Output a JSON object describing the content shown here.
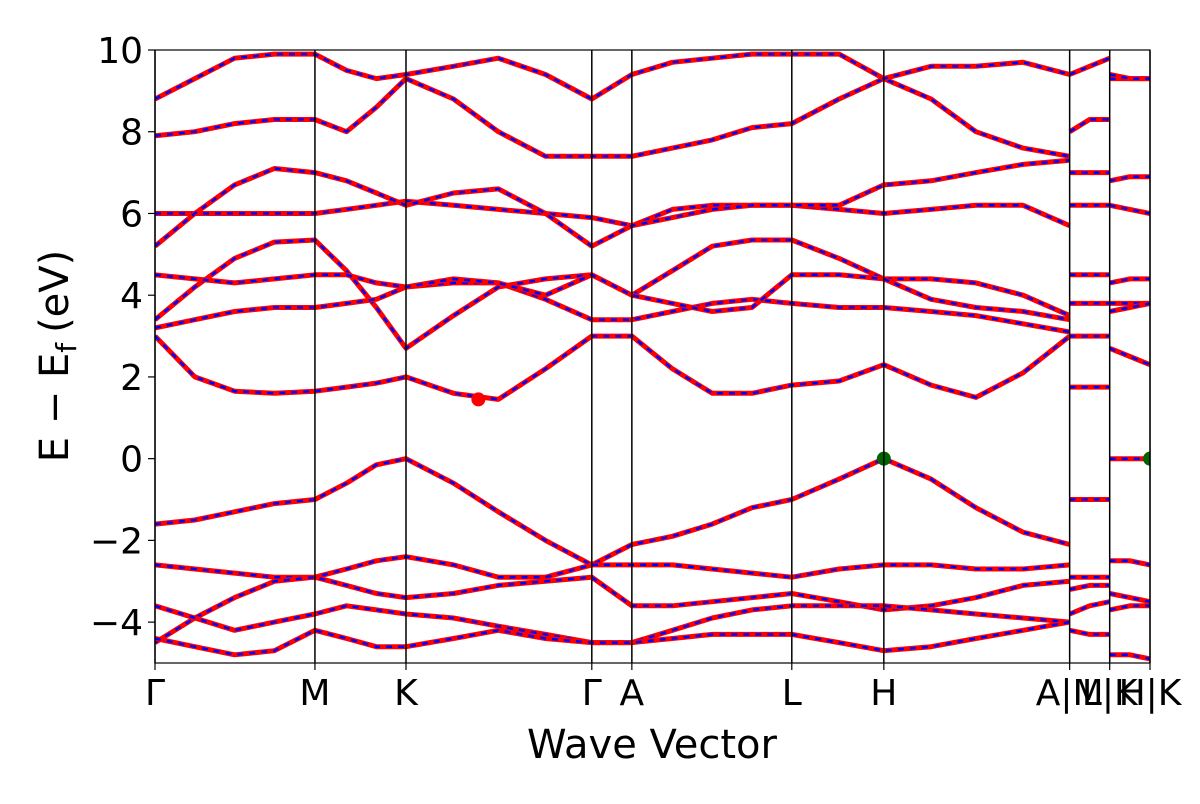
{
  "chart_data": {
    "type": "line",
    "xlabel": "Wave Vector",
    "ylabel": {
      "main": "E − E",
      "sub": "f",
      "unit": "(eV)"
    },
    "xlim": [
      0,
      4.0
    ],
    "ylim": [
      -5,
      10
    ],
    "yticks": [
      {
        "value": -4,
        "label": "−4"
      },
      {
        "value": -2,
        "label": "−2"
      },
      0,
      2,
      4,
      6,
      8,
      10
    ],
    "xticks": [
      {
        "value": 0,
        "label": "Γ"
      },
      {
        "value": 0.643,
        "label": "M"
      },
      {
        "value": 1.009,
        "label": "K"
      },
      {
        "value": 1.756,
        "label": "Γ"
      },
      {
        "value": 1.917,
        "label": "A"
      },
      {
        "value": 2.56,
        "label": "L"
      },
      {
        "value": 2.93,
        "label": "H"
      },
      {
        "value": 3.677,
        "label": "A|M"
      },
      {
        "value": 3.838,
        "label": "L|K"
      },
      {
        "value": 4.0,
        "label": "H|K"
      }
    ],
    "line_color": "#ff0000",
    "overlay_color": "#0000ff",
    "x": [
      0,
      0.16,
      0.32,
      0.48,
      0.643,
      0.77,
      0.89,
      1.009,
      1.2,
      1.38,
      1.57,
      1.756,
      1.917,
      2.08,
      2.24,
      2.4,
      2.56,
      2.75,
      2.93,
      3.12,
      3.3,
      3.49,
      3.677,
      3.677,
      3.677,
      3.757,
      3.838,
      3.838,
      3.838,
      3.919,
      4.0
    ],
    "series": [
      {
        "values": [
          -1.6,
          -1.5,
          -1.3,
          -1.1,
          -1.0,
          -0.6,
          -0.15,
          0,
          -0.6,
          -1.3,
          -2.0,
          -2.6,
          -2.1,
          -1.9,
          -1.6,
          -1.2,
          -1.0,
          -0.5,
          0,
          -0.5,
          -1.2,
          -1.8,
          -2.1,
          null,
          -1.0,
          -1.0,
          -1.0,
          null,
          0,
          0,
          0
        ]
      },
      {
        "values": [
          3.0,
          2.0,
          1.65,
          1.6,
          1.65,
          1.75,
          1.85,
          2.0,
          1.6,
          1.45,
          2.2,
          3.0,
          3.0,
          2.2,
          1.6,
          1.6,
          1.8,
          1.9,
          2.3,
          1.8,
          1.5,
          2.1,
          3.0,
          null,
          1.75,
          1.75,
          1.75,
          null,
          2.7,
          2.5,
          2.3
        ]
      },
      {
        "values": [
          3.4,
          4.2,
          4.9,
          5.3,
          5.35,
          4.6,
          3.7,
          2.7,
          3.5,
          4.2,
          4.4,
          4.5,
          4.0,
          4.6,
          5.2,
          5.35,
          5.35,
          4.9,
          4.4,
          4.4,
          4.3,
          4.0,
          3.5,
          null,
          4.5,
          4.5,
          4.5,
          null,
          4.3,
          4.4,
          4.4
        ]
      },
      {
        "values": [
          3.2,
          3.4,
          3.6,
          3.7,
          3.7,
          3.8,
          3.9,
          4.2,
          4.3,
          4.3,
          3.9,
          3.4,
          3.4,
          3.6,
          3.8,
          3.9,
          3.8,
          3.7,
          3.7,
          3.6,
          3.5,
          3.3,
          3.1,
          null,
          3.8,
          3.8,
          3.8,
          null,
          3.8,
          3.8,
          3.8
        ]
      },
      {
        "values": [
          4.5,
          4.4,
          4.3,
          4.4,
          4.5,
          4.5,
          4.3,
          4.2,
          4.4,
          4.3,
          4.0,
          4.5,
          4.0,
          3.8,
          3.6,
          3.7,
          4.5,
          4.5,
          4.4,
          3.9,
          3.7,
          3.6,
          3.4,
          null,
          3.0,
          3.0,
          3.0,
          null,
          3.6,
          3.7,
          3.8
        ]
      },
      {
        "values": [
          6.0,
          6.0,
          6.0,
          6.0,
          6.0,
          6.1,
          6.2,
          6.3,
          6.2,
          6.1,
          6.0,
          5.9,
          5.7,
          6.1,
          6.2,
          6.2,
          6.2,
          6.1,
          6.0,
          6.1,
          6.2,
          6.2,
          5.7,
          null,
          6.2,
          6.2,
          6.2,
          null,
          6.2,
          6.1,
          6.0
        ]
      },
      {
        "values": [
          5.2,
          6.0,
          6.7,
          7.1,
          7.0,
          6.8,
          6.5,
          6.2,
          6.5,
          6.6,
          6.0,
          5.2,
          5.7,
          5.9,
          6.1,
          6.2,
          6.2,
          6.2,
          6.7,
          6.8,
          7.0,
          7.2,
          7.3,
          null,
          7.0,
          7.0,
          7.0,
          null,
          6.8,
          6.9,
          6.9
        ]
      },
      {
        "values": [
          7.9,
          8.0,
          8.2,
          8.3,
          8.3,
          8.0,
          8.6,
          9.3,
          8.8,
          8.0,
          7.4,
          7.4,
          7.4,
          7.6,
          7.8,
          8.1,
          8.2,
          8.8,
          9.3,
          8.8,
          8.0,
          7.6,
          7.4,
          null,
          8.0,
          8.3,
          8.3,
          null,
          9.3,
          9.3,
          9.3
        ]
      },
      {
        "values": [
          8.8,
          9.3,
          9.8,
          9.9,
          9.9,
          9.5,
          9.3,
          9.4,
          9.6,
          9.8,
          9.4,
          8.8,
          9.4,
          9.7,
          9.8,
          9.9,
          9.9,
          9.9,
          9.3,
          9.6,
          9.6,
          9.7,
          9.4,
          null,
          9.4,
          9.6,
          9.8,
          null,
          9.4,
          9.3,
          9.3
        ]
      },
      {
        "values": [
          -2.6,
          -2.7,
          -2.8,
          -2.9,
          -2.9,
          -2.7,
          -2.5,
          -2.4,
          -2.6,
          -2.9,
          -2.9,
          -2.6,
          -2.6,
          -2.6,
          -2.7,
          -2.8,
          -2.9,
          -2.7,
          -2.6,
          -2.6,
          -2.7,
          -2.7,
          -2.6,
          null,
          -2.9,
          -2.9,
          -2.9,
          null,
          -2.5,
          -2.5,
          -2.6
        ]
      },
      {
        "values": [
          -4.5,
          -3.9,
          -3.4,
          -3.0,
          -2.9,
          -3.1,
          -3.3,
          -3.4,
          -3.3,
          -3.1,
          -3.0,
          -2.9,
          -3.6,
          -3.6,
          -3.5,
          -3.4,
          -3.3,
          -3.5,
          -3.7,
          -3.6,
          -3.4,
          -3.1,
          -3.0,
          null,
          -3.2,
          -3.1,
          -3.1,
          null,
          -3.3,
          -3.4,
          -3.5
        ]
      },
      {
        "values": [
          -3.6,
          -3.9,
          -4.2,
          -4.0,
          -3.8,
          -3.6,
          -3.7,
          -3.8,
          -3.9,
          -4.1,
          -4.3,
          -4.5,
          -4.5,
          -4.2,
          -3.9,
          -3.7,
          -3.6,
          -3.6,
          -3.6,
          -3.7,
          -3.8,
          -3.9,
          -4.0,
          null,
          -3.8,
          -3.6,
          -3.5,
          null,
          -3.7,
          -3.6,
          -3.6
        ]
      },
      {
        "values": [
          -4.4,
          -4.6,
          -4.8,
          -4.7,
          -4.2,
          -4.4,
          -4.6,
          -4.6,
          -4.4,
          -4.2,
          -4.4,
          -4.5,
          -4.5,
          -4.4,
          -4.3,
          -4.3,
          -4.3,
          -4.5,
          -4.7,
          -4.6,
          -4.4,
          -4.2,
          -4.0,
          null,
          -4.2,
          -4.3,
          -4.3,
          null,
          -4.8,
          -4.8,
          -4.9
        ]
      }
    ],
    "points": [
      {
        "x": 1.3,
        "y": 1.45,
        "color": "#ff0000"
      },
      {
        "x": 2.93,
        "y": 0,
        "color": "#006400"
      },
      {
        "x": 4.0,
        "y": 0,
        "color": "#006400"
      }
    ]
  }
}
